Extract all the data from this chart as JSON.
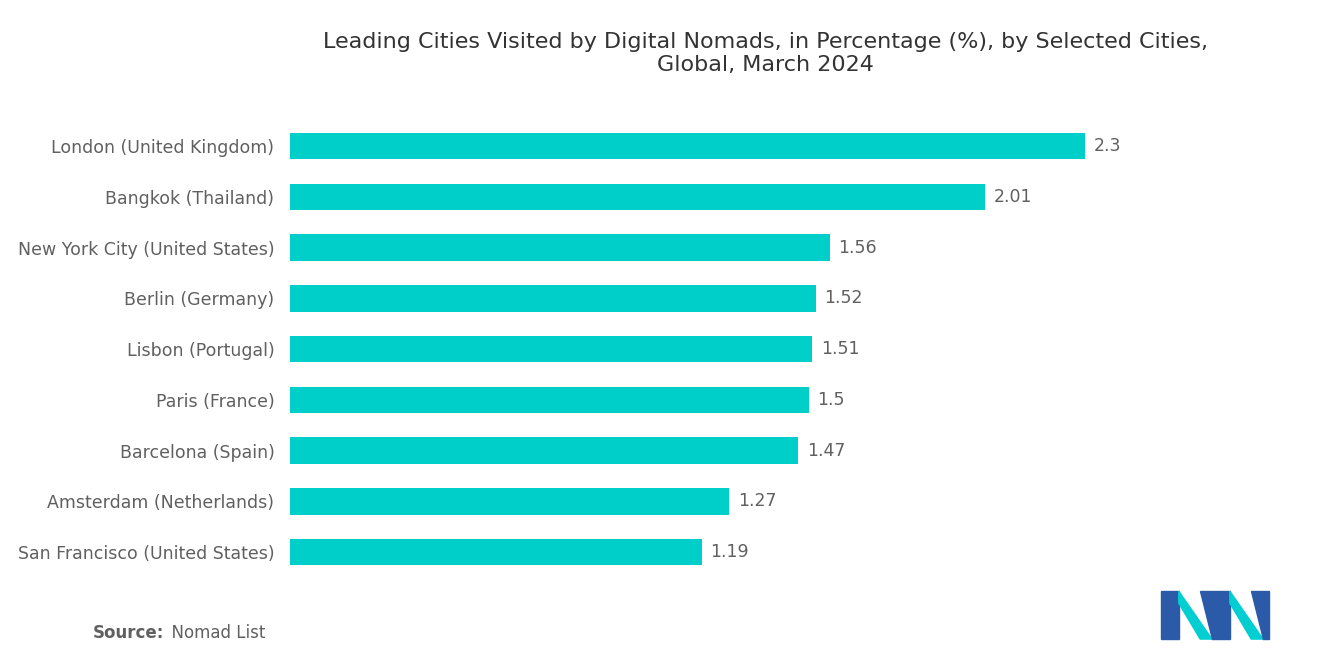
{
  "title": "Leading Cities Visited by Digital Nomads, in Percentage (%), by Selected Cities,\nGlobal, March 2024",
  "categories": [
    "San Francisco (United States)",
    "Amsterdam (Netherlands)",
    "Barcelona (Spain)",
    "Paris (France)",
    "Lisbon (Portugal)",
    "Berlin (Germany)",
    "New York City (United States)",
    "Bangkok (Thailand)",
    "London (United Kingdom)"
  ],
  "values": [
    1.19,
    1.27,
    1.47,
    1.5,
    1.51,
    1.52,
    1.56,
    2.01,
    2.3
  ],
  "bar_color": "#00CEC9",
  "label_color": "#606060",
  "title_color": "#333333",
  "value_color": "#606060",
  "background_color": "#ffffff",
  "source_bold": "Source:",
  "source_normal": "  Nomad List",
  "xlim": [
    0,
    2.75
  ],
  "title_fontsize": 16,
  "label_fontsize": 12.5,
  "value_fontsize": 12.5,
  "source_fontsize": 12
}
